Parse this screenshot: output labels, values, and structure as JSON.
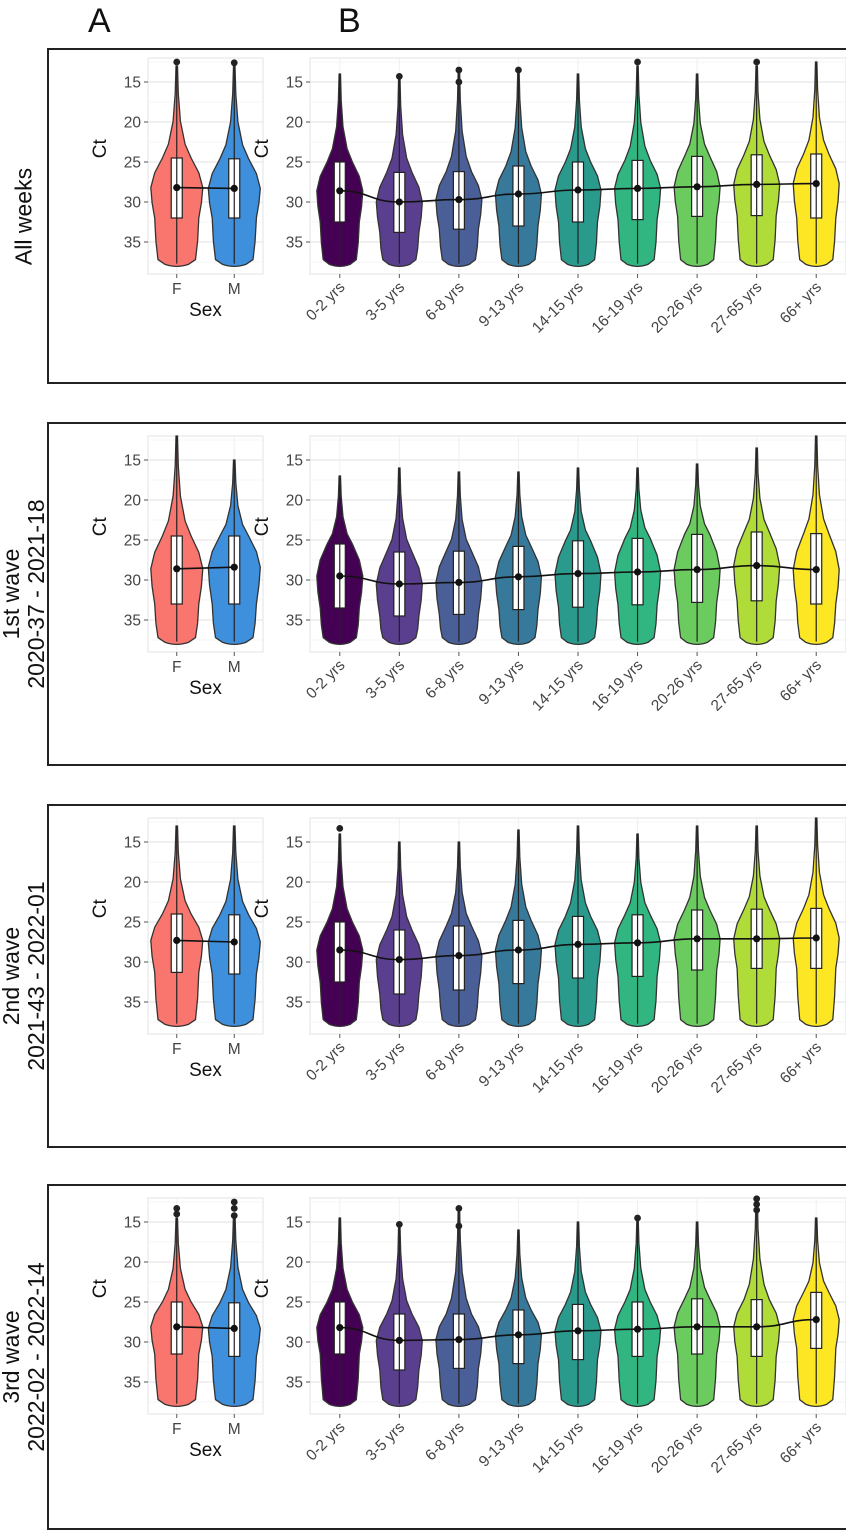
{
  "panel_letters": [
    "A",
    "B"
  ],
  "rows": [
    {
      "label_lines": [
        "All weeks"
      ]
    },
    {
      "label_lines": [
        "1st wave",
        "2020-37 - 2021-18"
      ]
    },
    {
      "label_lines": [
        "2nd wave",
        "2021-43 - 2022-01"
      ]
    },
    {
      "label_lines": [
        "3rd wave",
        "2022-02 - 2022-14"
      ]
    }
  ],
  "colors": {
    "sex": [
      "#f8766d",
      "#3e8fdc"
    ],
    "age": [
      "#440154",
      "#5a3f8e",
      "#4a5f97",
      "#37799a",
      "#2a9a8d",
      "#31b581",
      "#6ccb5f",
      "#b0dc3a",
      "#fde725"
    ]
  },
  "chart_data": [
    {
      "type": "violin",
      "panel": "A",
      "row": "All weeks",
      "xlabel": "Sex",
      "ylabel": "Ct",
      "ylim": [
        12,
        39
      ],
      "y_reversed": true,
      "yticks": [
        15,
        20,
        25,
        30,
        35
      ],
      "categories": [
        "F",
        "M"
      ],
      "medians": [
        28.2,
        28.3
      ],
      "q1": [
        24.5,
        24.6
      ],
      "q3": [
        32,
        32
      ],
      "max_whisker_top": [
        13,
        13
      ],
      "outliers": [
        [
          12.5
        ],
        [
          12.6
        ]
      ]
    },
    {
      "type": "violin",
      "panel": "B",
      "row": "All weeks",
      "xlabel": "",
      "ylabel": "Ct",
      "ylim": [
        12,
        39
      ],
      "y_reversed": true,
      "yticks": [
        15,
        20,
        25,
        30,
        35
      ],
      "categories": [
        "0-2 yrs",
        "3-5 yrs",
        "6-8 yrs",
        "9-13 yrs",
        "14-15 yrs",
        "16-19 yrs",
        "20-26 yrs",
        "27-65 yrs",
        "66+ yrs"
      ],
      "medians": [
        28.6,
        30,
        29.7,
        29,
        28.5,
        28.3,
        28.1,
        27.8,
        27.7
      ],
      "q1": [
        25,
        26.3,
        26.2,
        25.5,
        25,
        24.8,
        24.3,
        24.1,
        24
      ],
      "q3": [
        32.5,
        33.8,
        33.4,
        33,
        32.5,
        32.2,
        31.8,
        31.7,
        32
      ],
      "max_whisker_top": [
        14,
        14.5,
        13.5,
        13.5,
        14,
        13,
        14,
        13,
        12.5
      ],
      "outliers": [
        [],
        [
          14.3
        ],
        [
          13.5,
          15
        ],
        [
          13.5
        ],
        [],
        [
          12.5
        ],
        [],
        [
          12.5
        ],
        []
      ]
    },
    {
      "type": "violin",
      "panel": "A",
      "row": "1st wave",
      "xlabel": "Sex",
      "ylabel": "Ct",
      "ylim": [
        12,
        39
      ],
      "y_reversed": true,
      "yticks": [
        15,
        20,
        25,
        30,
        35
      ],
      "categories": [
        "F",
        "M"
      ],
      "medians": [
        28.6,
        28.4
      ],
      "q1": [
        24.5,
        24.5
      ],
      "q3": [
        33,
        33
      ],
      "max_whisker_top": [
        12,
        15
      ],
      "outliers": [
        [],
        []
      ]
    },
    {
      "type": "violin",
      "panel": "B",
      "row": "1st wave",
      "xlabel": "",
      "ylabel": "Ct",
      "ylim": [
        12,
        39
      ],
      "y_reversed": true,
      "yticks": [
        15,
        20,
        25,
        30,
        35
      ],
      "categories": [
        "0-2 yrs",
        "3-5 yrs",
        "6-8 yrs",
        "9-13 yrs",
        "14-15 yrs",
        "16-19 yrs",
        "20-26 yrs",
        "27-65 yrs",
        "66+ yrs"
      ],
      "medians": [
        29.5,
        30.5,
        30.3,
        29.6,
        29.2,
        29,
        28.7,
        28.2,
        28.7
      ],
      "q1": [
        25.5,
        26.5,
        26.4,
        25.8,
        25.1,
        24.8,
        24.3,
        24,
        24.2
      ],
      "q3": [
        33.5,
        34.5,
        34.3,
        33.7,
        33.4,
        33.1,
        32.8,
        32.6,
        33
      ],
      "max_whisker_top": [
        17,
        16,
        16.5,
        16.5,
        16,
        16,
        15.5,
        13.5,
        12
      ],
      "outliers": [
        [],
        [],
        [],
        [],
        [],
        [],
        [],
        [],
        []
      ]
    },
    {
      "type": "violin",
      "panel": "A",
      "row": "2nd wave",
      "xlabel": "Sex",
      "ylabel": "Ct",
      "ylim": [
        12,
        39
      ],
      "y_reversed": true,
      "yticks": [
        15,
        20,
        25,
        30,
        35
      ],
      "categories": [
        "F",
        "M"
      ],
      "medians": [
        27.3,
        27.5
      ],
      "q1": [
        24,
        24.1
      ],
      "q3": [
        31.3,
        31.5
      ],
      "max_whisker_top": [
        13,
        13
      ],
      "outliers": [
        [],
        []
      ]
    },
    {
      "type": "violin",
      "panel": "B",
      "row": "2nd wave",
      "xlabel": "",
      "ylabel": "Ct",
      "ylim": [
        12,
        39
      ],
      "y_reversed": true,
      "yticks": [
        15,
        20,
        25,
        30,
        35
      ],
      "categories": [
        "0-2 yrs",
        "3-5 yrs",
        "6-8 yrs",
        "9-13 yrs",
        "14-15 yrs",
        "16-19 yrs",
        "20-26 yrs",
        "27-65 yrs",
        "66+ yrs"
      ],
      "medians": [
        28.5,
        29.7,
        29.2,
        28.5,
        27.8,
        27.6,
        27.1,
        27.1,
        27
      ],
      "q1": [
        25,
        26,
        25.5,
        24.8,
        24.3,
        24.1,
        23.5,
        23.4,
        23.3
      ],
      "q3": [
        32.5,
        34,
        33.5,
        32.7,
        32,
        31.8,
        31,
        30.8,
        30.8
      ],
      "max_whisker_top": [
        14,
        15,
        15,
        13.5,
        13,
        14,
        13,
        13,
        12
      ],
      "outliers": [
        [
          13.3
        ],
        [],
        [],
        [],
        [],
        [],
        [],
        [],
        []
      ]
    },
    {
      "type": "violin",
      "panel": "A",
      "row": "3rd wave",
      "xlabel": "Sex",
      "ylabel": "Ct",
      "ylim": [
        12,
        39
      ],
      "y_reversed": true,
      "yticks": [
        15,
        20,
        25,
        30,
        35
      ],
      "categories": [
        "F",
        "M"
      ],
      "medians": [
        28.1,
        28.3
      ],
      "q1": [
        25,
        25.1
      ],
      "q3": [
        31.5,
        31.8
      ],
      "max_whisker_top": [
        14.5,
        14
      ],
      "outliers": [
        [
          13.3,
          14
        ],
        [
          12.5,
          13.3,
          14.2
        ]
      ]
    },
    {
      "type": "violin",
      "panel": "B",
      "row": "3rd wave",
      "xlabel": "",
      "ylabel": "Ct",
      "ylim": [
        12,
        39
      ],
      "y_reversed": true,
      "yticks": [
        15,
        20,
        25,
        30,
        35
      ],
      "categories": [
        "0-2 yrs",
        "3-5 yrs",
        "6-8 yrs",
        "9-13 yrs",
        "14-15 yrs",
        "16-19 yrs",
        "20-26 yrs",
        "27-65 yrs",
        "66+ yrs"
      ],
      "medians": [
        28.2,
        29.8,
        29.7,
        29.1,
        28.6,
        28.4,
        28.1,
        28.1,
        27.2
      ],
      "q1": [
        25,
        26.5,
        26.5,
        26,
        25.3,
        25,
        24.6,
        24.7,
        23.8
      ],
      "q3": [
        31.5,
        33.5,
        33.3,
        32.7,
        32.2,
        31.8,
        31.5,
        31.8,
        30.8
      ],
      "max_whisker_top": [
        14.5,
        15.5,
        13.3,
        16,
        15,
        14.5,
        15,
        12,
        14.5
      ],
      "outliers": [
        [],
        [
          15.3
        ],
        [
          13.3,
          15.5
        ],
        [],
        [],
        [
          14.5
        ],
        [],
        [
          12.1,
          12.8,
          13.5
        ],
        []
      ]
    }
  ]
}
